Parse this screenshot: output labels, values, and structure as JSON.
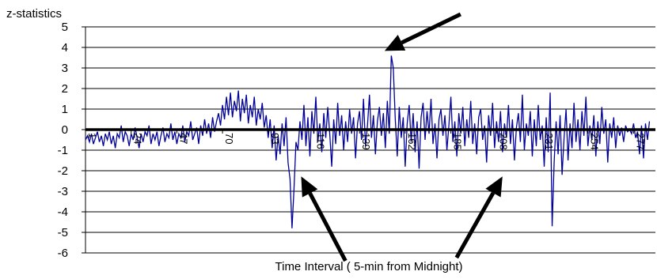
{
  "chart_data": {
    "type": "line",
    "title": "",
    "ylabel": "z-statistics",
    "xlabel": "Time Interval ( 5-min from Midnight)",
    "ylim": [
      -6,
      5
    ],
    "yticks": [
      "5",
      "4",
      "3",
      "2",
      "1",
      "0",
      "-1",
      "-2",
      "-3",
      "-4",
      "-5",
      "-6"
    ],
    "xlim": [
      1,
      288
    ],
    "xticks": [
      "1",
      "24",
      "47",
      "70",
      "93",
      "116",
      "139",
      "162",
      "185",
      "208",
      "231",
      "254",
      "277"
    ],
    "grid": true,
    "line_color": "#000099",
    "zero_line_color": "#000000",
    "arrow_color": "#000000",
    "series": [
      {
        "name": "",
        "x_start": 1,
        "values": [
          -0.5,
          -0.3,
          -0.6,
          -0.2,
          -0.7,
          -0.4,
          -0.1,
          -0.6,
          -0.3,
          -0.8,
          -0.2,
          -0.5,
          -0.1,
          -0.7,
          -0.3,
          -0.9,
          -0.2,
          -0.4,
          0.2,
          -0.6,
          -0.1,
          -0.3,
          -0.8,
          -0.2,
          -0.5,
          0.1,
          -0.4,
          -0.9,
          -0.2,
          -0.6,
          -0.1,
          -0.3,
          0.2,
          -0.7,
          -0.2,
          -0.5,
          -0.1,
          -0.8,
          -0.3,
          0.1,
          -0.6,
          -0.2,
          -0.4,
          0.3,
          -0.5,
          -0.1,
          -0.7,
          -0.2,
          -0.4,
          0.2,
          -0.6,
          -0.1,
          -0.3,
          0.4,
          -0.5,
          -0.2,
          0.1,
          -0.7,
          0.2,
          -0.3,
          0.5,
          -0.2,
          0.3,
          -0.4,
          0.6,
          -0.1,
          0.4,
          0.8,
          0.2,
          1.2,
          0.5,
          1.6,
          0.7,
          1.8,
          0.6,
          1.4,
          0.9,
          1.9,
          0.4,
          1.5,
          0.8,
          1.7,
          0.3,
          1.2,
          0.6,
          1.6,
          0.2,
          1.0,
          0.5,
          1.3,
          0.1,
          0.7,
          -0.4,
          0.5,
          -0.9,
          0.2,
          -1.5,
          -0.3,
          -1.2,
          0.3,
          -0.8,
          0.6,
          -1.6,
          -2.4,
          -4.8,
          -2.9,
          -0.6,
          -1.0,
          0.4,
          -0.5,
          1.2,
          -0.8,
          0.6,
          -1.3,
          0.9,
          -0.2,
          1.6,
          -0.6,
          0.3,
          -1.1,
          0.8,
          -0.4,
          1.1,
          -0.2,
          -1.8,
          0.5,
          -0.7,
          1.3,
          -0.3,
          0.7,
          -1.0,
          0.4,
          -0.6,
          1.0,
          -0.2,
          0.6,
          -1.4,
          0.3,
          0.9,
          -0.5,
          1.5,
          -0.8,
          0.2,
          1.7,
          -0.4,
          0.7,
          -1.2,
          0.4,
          1.1,
          -0.3,
          0.8,
          -0.9,
          1.4,
          -0.2,
          3.6,
          3.0,
          0.5,
          -1.3,
          1.1,
          -0.4,
          0.6,
          -1.8,
          0.3,
          1.2,
          -0.6,
          0.8,
          -1.1,
          0.4,
          -1.9,
          0.6,
          1.3,
          -0.5,
          0.9,
          -0.2,
          1.5,
          -0.7,
          0.3,
          -1.4,
          0.5,
          1.0,
          -0.3,
          0.7,
          -1.0,
          0.2,
          1.6,
          -0.6,
          0.4,
          -1.3,
          0.8,
          -0.2,
          1.1,
          -0.8,
          0.5,
          -0.4,
          1.4,
          -0.7,
          0.3,
          -1.2,
          0.6,
          1.0,
          -0.5,
          0.2,
          -1.6,
          0.7,
          -0.3,
          1.3,
          -0.9,
          0.4,
          -0.6,
          0.9,
          -1.1,
          0.3,
          -0.4,
          1.2,
          -0.7,
          0.5,
          -1.5,
          0.1,
          0.8,
          -0.6,
          1.7,
          -1.0,
          0.3,
          -0.3,
          0.9,
          -1.3,
          0.5,
          -0.8,
          1.2,
          -0.5,
          0.2,
          -1.8,
          0.6,
          -1.1,
          1.8,
          -4.7,
          -1.6,
          0.4,
          -1.2,
          0.7,
          -2.2,
          -0.4,
          1.0,
          -1.5,
          0.3,
          -0.9,
          1.3,
          -0.6,
          0.5,
          -1.0,
          0.9,
          -0.3,
          1.6,
          -0.8,
          0.2,
          -0.5,
          0.7,
          -1.3,
          0.4,
          -0.7,
          1.1,
          -0.2,
          0.5,
          -1.6,
          0.3,
          -0.4,
          0.6,
          -0.9,
          0.2,
          -0.3,
          0.1,
          -0.6,
          0.2,
          -0.1,
          0.0,
          -0.2,
          0.3,
          -0.4,
          -0.1,
          -1.2,
          0.2,
          -1.4,
          0.3,
          -0.5,
          0.4
        ]
      }
    ],
    "annotations": [
      {
        "type": "arrow",
        "points_to_x": 158,
        "points_to_y": 3.6
      },
      {
        "type": "arrow",
        "points_to_x": 108,
        "points_to_y": -2.2
      },
      {
        "type": "arrow",
        "points_to_x": 207,
        "points_to_y": -2.2
      }
    ]
  }
}
